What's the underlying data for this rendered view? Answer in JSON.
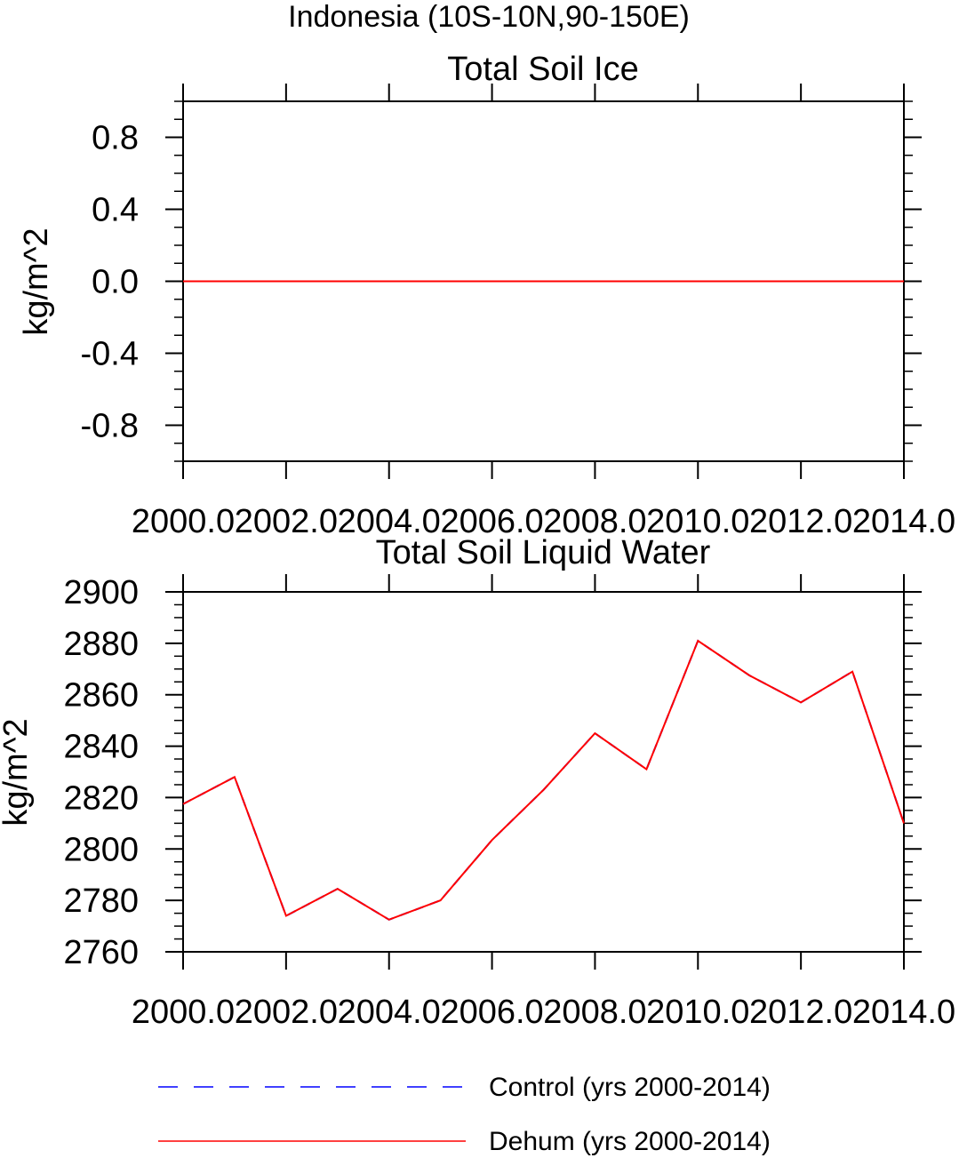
{
  "figure": {
    "title": "Indonesia (10S-10N,90-150E)"
  },
  "legend": [
    {
      "label": "Control (yrs 2000-2014)",
      "color": "#0000ff",
      "dash": "dashed"
    },
    {
      "label": "Dehum (yrs 2000-2014)",
      "color": "#ff0000",
      "dash": "solid"
    }
  ],
  "chart_data": [
    {
      "type": "line",
      "title": "Total Soil Ice",
      "xlabel": "",
      "ylabel": "kg/m^2",
      "xlim": [
        2000,
        2014
      ],
      "ylim": [
        -1.0,
        1.0
      ],
      "xticks": [
        2000,
        2002,
        2004,
        2006,
        2008,
        2010,
        2012,
        2014
      ],
      "xtick_labels": [
        "2000.0",
        "2002.0",
        "2004.0",
        "2006.0",
        "2008.0",
        "2010.0",
        "2012.0",
        "2014.0"
      ],
      "yticks": [
        -0.8,
        -0.4,
        0.0,
        0.4,
        0.8
      ],
      "ytick_labels": [
        "-0.8",
        "-0.4",
        "0.0",
        "0.4",
        "0.8"
      ],
      "x": [
        2000,
        2001,
        2002,
        2003,
        2004,
        2005,
        2006,
        2007,
        2008,
        2009,
        2010,
        2011,
        2012,
        2013,
        2014
      ],
      "series": [
        {
          "name": "Control (yrs 2000-2014)",
          "color": "#0000ff",
          "values": [
            0,
            0,
            0,
            0,
            0,
            0,
            0,
            0,
            0,
            0,
            0,
            0,
            0,
            0,
            0
          ]
        },
        {
          "name": "Dehum (yrs 2000-2014)",
          "color": "#ff0000",
          "values": [
            0,
            0,
            0,
            0,
            0,
            0,
            0,
            0,
            0,
            0,
            0,
            0,
            0,
            0,
            0
          ]
        }
      ]
    },
    {
      "type": "line",
      "title": "Total Soil Liquid Water",
      "xlabel": "",
      "ylabel": "kg/m^2",
      "xlim": [
        2000,
        2014
      ],
      "ylim": [
        2760,
        2900
      ],
      "xticks": [
        2000,
        2002,
        2004,
        2006,
        2008,
        2010,
        2012,
        2014
      ],
      "xtick_labels": [
        "2000.0",
        "2002.0",
        "2004.0",
        "2006.0",
        "2008.0",
        "2010.0",
        "2012.0",
        "2014.0"
      ],
      "yticks": [
        2760,
        2780,
        2800,
        2820,
        2840,
        2860,
        2880,
        2900
      ],
      "ytick_labels": [
        "2760",
        "2780",
        "2800",
        "2820",
        "2840",
        "2860",
        "2880",
        "2900"
      ],
      "x": [
        2000,
        2001,
        2002,
        2003,
        2004,
        2005,
        2006,
        2007,
        2008,
        2009,
        2010,
        2011,
        2012,
        2013,
        2014
      ],
      "series": [
        {
          "name": "Control (yrs 2000-2014)",
          "color": "#0000ff",
          "values": [
            2817.5,
            2828,
            2774,
            2784.5,
            2772.5,
            2780,
            2803.5,
            2823,
            2845,
            2831,
            2881,
            2867.5,
            2857,
            2869,
            2810
          ]
        },
        {
          "name": "Dehum (yrs 2000-2014)",
          "color": "#ff0000",
          "values": [
            2817.5,
            2828,
            2774,
            2784.5,
            2772.5,
            2780,
            2803.5,
            2823,
            2845,
            2831,
            2881,
            2867.5,
            2857,
            2869,
            2810
          ]
        }
      ]
    }
  ]
}
